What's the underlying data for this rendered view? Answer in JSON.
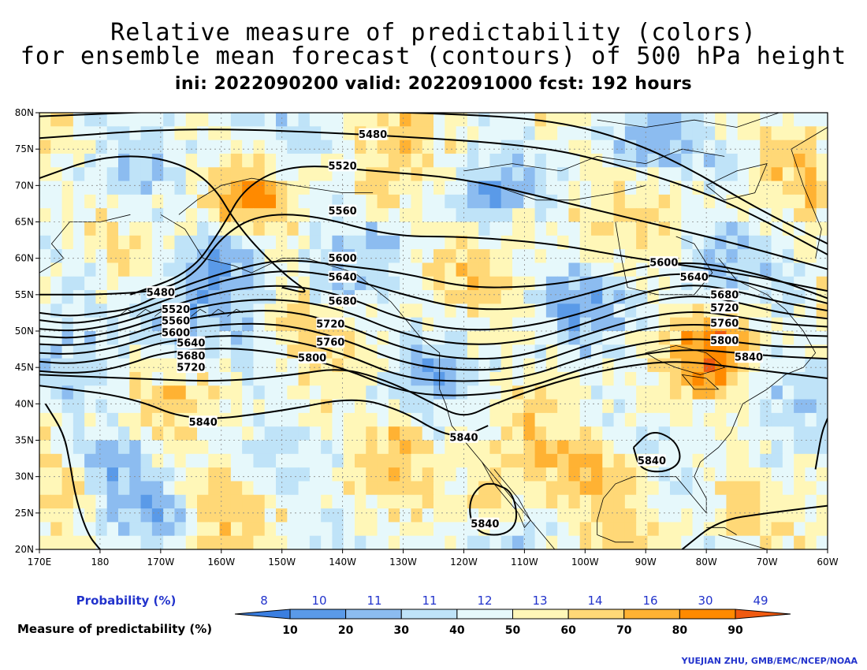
{
  "title": {
    "line1": "Relative measure of predictability (colors)",
    "line2": "for ensemble mean forecast (contours) of 500 hPa height",
    "line3": "ini: 2022090200 valid: 2022091000 fcst: 192 hours"
  },
  "map": {
    "lon_labels": [
      "170E",
      "180",
      "170W",
      "160W",
      "150W",
      "140W",
      "130W",
      "120W",
      "110W",
      "100W",
      "90W",
      "80W",
      "70W",
      "60W"
    ],
    "lat_labels": [
      "80N",
      "75N",
      "70N",
      "65N",
      "60N",
      "55N",
      "50N",
      "45N",
      "40N",
      "35N",
      "30N",
      "25N",
      "20N"
    ],
    "lon_range": [
      170,
      300
    ],
    "lat_range": [
      20,
      80
    ],
    "contour_labels": [
      {
        "text": "5480",
        "lon": 225.0,
        "lat": 77.0
      },
      {
        "text": "5520",
        "lon": 220.0,
        "lat": 72.7
      },
      {
        "text": "5560",
        "lon": 220.0,
        "lat": 66.5
      },
      {
        "text": "5600",
        "lon": 220.0,
        "lat": 60.0
      },
      {
        "text": "5640",
        "lon": 220.0,
        "lat": 57.4
      },
      {
        "text": "5680",
        "lon": 220.0,
        "lat": 54.1
      },
      {
        "text": "5720",
        "lon": 218.0,
        "lat": 51.0
      },
      {
        "text": "5760",
        "lon": 218.0,
        "lat": 48.5
      },
      {
        "text": "5800",
        "lon": 215.0,
        "lat": 46.3
      },
      {
        "text": "5480",
        "lon": 190.0,
        "lat": 55.3
      },
      {
        "text": "5520",
        "lon": 192.5,
        "lat": 53.0
      },
      {
        "text": "5560",
        "lon": 192.5,
        "lat": 51.4
      },
      {
        "text": "5600",
        "lon": 192.5,
        "lat": 49.8
      },
      {
        "text": "5640",
        "lon": 195.0,
        "lat": 48.4
      },
      {
        "text": "5680",
        "lon": 195.0,
        "lat": 46.6
      },
      {
        "text": "5720",
        "lon": 195.0,
        "lat": 45.0
      },
      {
        "text": "5600",
        "lon": 273.0,
        "lat": 59.4
      },
      {
        "text": "5640",
        "lon": 278.0,
        "lat": 57.4
      },
      {
        "text": "5680",
        "lon": 283.0,
        "lat": 55.0
      },
      {
        "text": "5720",
        "lon": 283.0,
        "lat": 53.2
      },
      {
        "text": "5760",
        "lon": 283.0,
        "lat": 51.1
      },
      {
        "text": "5800",
        "lon": 283.0,
        "lat": 48.7
      },
      {
        "text": "5840",
        "lon": 287.0,
        "lat": 46.4
      },
      {
        "text": "5840",
        "lon": 197.0,
        "lat": 37.5
      },
      {
        "text": "5840",
        "lon": 240.0,
        "lat": 35.4
      },
      {
        "text": "5840",
        "lon": 271.0,
        "lat": 32.2
      },
      {
        "text": "5840",
        "lon": 243.5,
        "lat": 23.5
      }
    ]
  },
  "legend": {
    "probability_label": "Probability (%)",
    "probability_values": [
      "8",
      "10",
      "11",
      "11",
      "12",
      "13",
      "14",
      "16",
      "30",
      "49"
    ],
    "measure_label": "Measure of predictability (%)",
    "bin_labels": [
      "10",
      "20",
      "30",
      "40",
      "50",
      "60",
      "70",
      "80",
      "90"
    ],
    "colors": [
      "#3a7ee0",
      "#5a9ae8",
      "#8cbcf0",
      "#bfe3f8",
      "#e6f8fb",
      "#fff7b8",
      "#ffd877",
      "#ffb233",
      "#ff8a00",
      "#f05a10"
    ],
    "probability_color": "#2233cc"
  },
  "credit": "YUEJIAN ZHU, GMB/EMC/NCEP/NOAA"
}
